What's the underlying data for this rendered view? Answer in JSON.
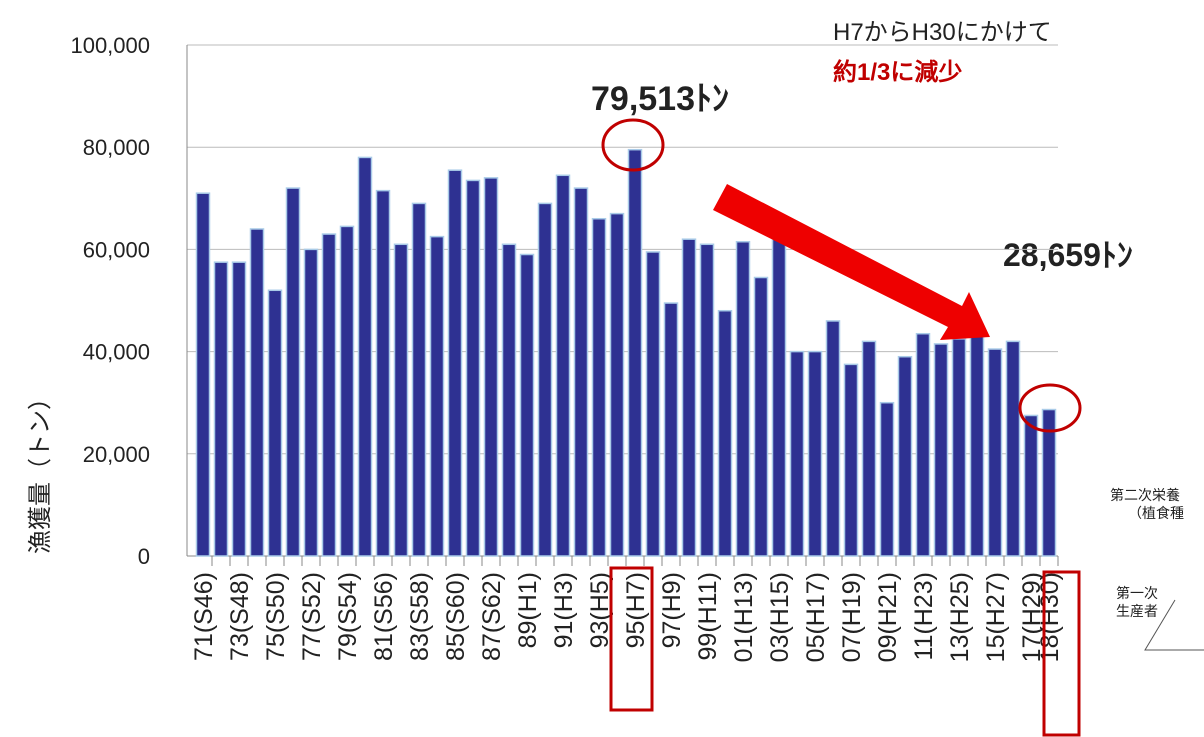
{
  "chart_data": {
    "type": "bar",
    "ylabel": "漁獲量（トン）",
    "categories": [
      "71(S46)",
      null,
      "73(S48)",
      null,
      "75(S50)",
      null,
      "77(S52)",
      null,
      "79(S54)",
      null,
      "81(S56)",
      null,
      "83(S58)",
      null,
      "85(S60)",
      null,
      "87(S62)",
      null,
      "89(H1)",
      null,
      "91(H3)",
      null,
      "93(H5)",
      null,
      "95(H7)",
      null,
      "97(H9)",
      null,
      "99(H11)",
      null,
      "01(H13)",
      null,
      "03(H15)",
      null,
      "05(H17)",
      null,
      "07(H19)",
      null,
      "09(H21)",
      null,
      "11(H23)",
      null,
      "13(H25)",
      null,
      "15(H27)",
      null,
      "17(H29)",
      "18(H30)"
    ],
    "values": [
      71000,
      57500,
      57500,
      64000,
      52000,
      72000,
      60000,
      63000,
      64500,
      78000,
      71500,
      61000,
      69000,
      62500,
      75500,
      73500,
      74000,
      61000,
      59000,
      69000,
      74500,
      72000,
      66000,
      67000,
      79513,
      59500,
      49500,
      62000,
      61000,
      48000,
      61500,
      54500,
      62000,
      40000,
      40000,
      46000,
      37500,
      42000,
      30000,
      39000,
      43500,
      41500,
      42500,
      43000,
      40500,
      42000,
      27500,
      28659
    ],
    "color": "#2e3192",
    "ylim": [
      0,
      100000
    ],
    "yticks": [
      0,
      {
        "value": 20000,
        "label": "20,000"
      },
      {
        "value": 40000,
        "label": "40,000"
      },
      {
        "value": 60000,
        "label": "60,000"
      },
      {
        "value": 80000,
        "label": "80,000"
      },
      {
        "value": 100000,
        "label": "100,000"
      }
    ],
    "grid": true,
    "annotations": [
      "H7からH30にかけて",
      "約1/3に減少",
      "79,513ﾄﾝ",
      "28,659ﾄﾝ"
    ],
    "side_texts": [
      "第二次栄養",
      "（植食種",
      "第一次",
      "生産者"
    ]
  }
}
